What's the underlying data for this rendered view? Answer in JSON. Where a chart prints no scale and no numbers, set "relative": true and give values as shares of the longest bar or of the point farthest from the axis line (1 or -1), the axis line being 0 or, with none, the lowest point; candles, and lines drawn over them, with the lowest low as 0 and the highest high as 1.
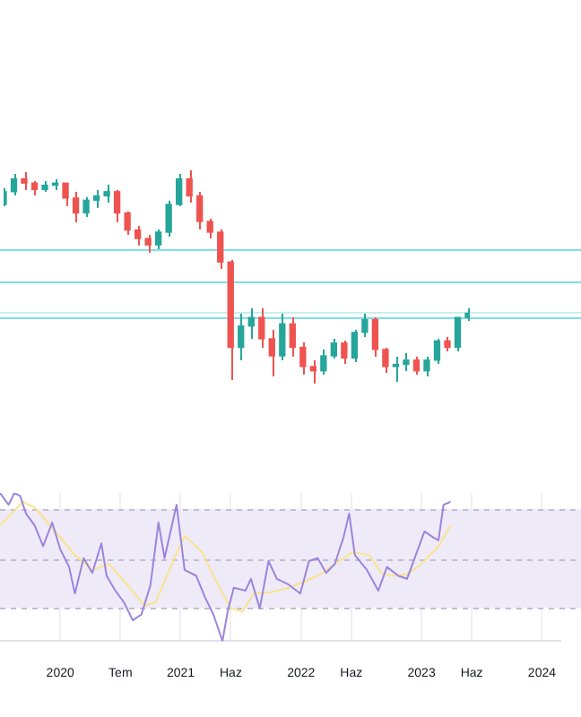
{
  "chart_data": [
    {
      "type": "candlestick",
      "relative": true,
      "categories": [
        null,
        null,
        null,
        null,
        null,
        null,
        null,
        null,
        null,
        null,
        null,
        null,
        null,
        null,
        null,
        null,
        null,
        null,
        null,
        null,
        null,
        null,
        null,
        null,
        null,
        null,
        null,
        null,
        null,
        null,
        null,
        null,
        null,
        null,
        null,
        null,
        null,
        null,
        null,
        null,
        null,
        null,
        null,
        null,
        null,
        null
      ],
      "ohlc": [
        [
          0.84,
          0.92,
          0.83,
          0.9
        ],
        [
          0.9,
          0.98,
          0.88,
          0.96
        ],
        [
          0.96,
          0.99,
          0.91,
          0.94
        ],
        [
          0.94,
          0.95,
          0.88,
          0.91
        ],
        [
          0.91,
          0.95,
          0.9,
          0.93
        ],
        [
          0.93,
          0.96,
          0.91,
          0.94
        ],
        [
          0.94,
          0.94,
          0.83,
          0.87
        ],
        [
          0.87,
          0.9,
          0.76,
          0.8
        ],
        [
          0.8,
          0.87,
          0.78,
          0.86
        ],
        [
          0.86,
          0.91,
          0.82,
          0.88
        ],
        [
          0.88,
          0.93,
          0.85,
          0.9
        ],
        [
          0.9,
          0.91,
          0.76,
          0.8
        ],
        [
          0.8,
          0.81,
          0.7,
          0.72
        ],
        [
          0.72,
          0.74,
          0.65,
          0.68
        ],
        [
          0.68,
          0.7,
          0.61,
          0.65
        ],
        [
          0.65,
          0.72,
          0.63,
          0.71
        ],
        [
          0.71,
          0.86,
          0.69,
          0.84
        ],
        [
          0.84,
          0.98,
          0.83,
          0.96
        ],
        [
          0.96,
          1.0,
          0.85,
          0.88
        ],
        [
          0.88,
          0.9,
          0.72,
          0.76
        ],
        [
          0.76,
          0.77,
          0.68,
          0.71
        ],
        [
          0.71,
          0.72,
          0.54,
          0.57
        ],
        [
          0.57,
          0.58,
          0.02,
          0.17
        ],
        [
          0.17,
          0.33,
          0.11,
          0.27
        ],
        [
          0.27,
          0.35,
          0.21,
          0.31
        ],
        [
          0.31,
          0.35,
          0.17,
          0.21
        ],
        [
          0.21,
          0.25,
          0.03,
          0.13
        ],
        [
          0.13,
          0.33,
          0.11,
          0.28
        ],
        [
          0.28,
          0.31,
          0.13,
          0.17
        ],
        [
          0.17,
          0.19,
          0.04,
          0.08
        ],
        [
          0.08,
          0.11,
          0,
          0.06
        ],
        [
          0.06,
          0.16,
          0.04,
          0.13
        ],
        [
          0.13,
          0.21,
          0.12,
          0.19
        ],
        [
          0.19,
          0.2,
          0.09,
          0.12
        ],
        [
          0.12,
          0.25,
          0.1,
          0.24
        ],
        [
          0.24,
          0.33,
          0.22,
          0.3
        ],
        [
          0.3,
          0.31,
          0.13,
          0.16
        ],
        [
          0.16,
          0.17,
          0.05,
          0.08
        ],
        [
          0.08,
          0.13,
          0.01,
          0.09
        ],
        [
          0.09,
          0.14,
          0.06,
          0.11
        ],
        [
          0.11,
          0.13,
          0.04,
          0.06
        ],
        [
          0.06,
          0.13,
          0.03,
          0.11
        ],
        [
          0.11,
          0.21,
          0.09,
          0.2
        ],
        [
          0.2,
          0.22,
          0.15,
          0.17
        ],
        [
          0.17,
          0.31,
          0.15,
          0.31
        ],
        [
          0.31,
          0.35,
          0.29,
          0.33
        ]
      ],
      "colors": [
        "#26a69a",
        "#26a69a",
        "#ef5350",
        "#ef5350",
        "#26a69a",
        "#26a69a",
        "#ef5350",
        "#ef5350",
        "#26a69a",
        "#26a69a",
        "#26a69a",
        "#ef5350",
        "#ef5350",
        "#ef5350",
        "#ef5350",
        "#26a69a",
        "#26a69a",
        "#26a69a",
        "#ef5350",
        "#ef5350",
        "#ef5350",
        "#ef5350",
        "#ef5350",
        "#26a69a",
        "#26a69a",
        "#ef5350",
        "#ef5350",
        "#26a69a",
        "#ef5350",
        "#ef5350",
        "#ef5350",
        "#26a69a",
        "#26a69a",
        "#ef5350",
        "#26a69a",
        "#26a69a",
        "#ef5350",
        "#ef5350",
        "#26a69a",
        "#26a69a",
        "#ef5350",
        "#26a69a",
        "#26a69a",
        "#ef5350",
        "#26a69a",
        "#26a69a"
      ],
      "ref_lines": [
        {
          "axis": "y",
          "value": 0.63,
          "color": "#80deea"
        },
        {
          "axis": "y",
          "value": 0.48,
          "color": "#80deea"
        },
        {
          "axis": "y",
          "value": 0.34,
          "color": "#c9eff4"
        },
        {
          "axis": "y",
          "value": 0.31,
          "color": "#80deea"
        }
      ]
    },
    {
      "type": "line",
      "relative": true,
      "grid": "x",
      "marker": "none",
      "series": [
        {
          "color": "#9c84dc",
          "x": [
            "2019-07-01",
            "2019-07-27",
            "2019-08-14",
            "2019-09-01",
            "2019-09-19",
            "2019-10-15",
            "2019-11-10",
            "2019-12-07",
            "2020-01-01",
            "2020-01-28",
            "2020-02-15",
            "2020-03-11",
            "2020-04-07",
            "2020-05-04",
            "2020-05-20",
            "2020-06-16",
            "2020-07-12",
            "2020-08-08",
            "2020-09-04",
            "2020-10-01",
            "2020-10-25",
            "2020-11-13",
            "2020-12-19",
            "2021-01-13",
            "2021-02-18",
            "2021-03-13",
            "2021-04-09",
            "2021-05-06",
            "2021-05-22",
            "2021-06-10",
            "2021-07-15",
            "2021-08-01",
            "2021-08-28",
            "2021-09-24",
            "2021-10-19",
            "2021-11-25",
            "2021-12-29",
            "2022-01-25",
            "2022-02-21",
            "2022-03-16",
            "2022-04-12",
            "2022-05-08",
            "2022-05-25",
            "2022-06-12",
            "2022-07-18",
            "2022-08-22",
            "2022-09-18",
            "2022-10-22",
            "2022-11-18",
            "2022-12-14",
            "2023-01-10",
            "2023-02-06",
            "2023-02-22",
            "2023-03-07",
            "2023-03-28"
          ],
          "values": [
            1.0,
            0.92,
            1.0,
            0.98,
            0.86,
            0.78,
            0.64,
            0.8,
            0.62,
            0.5,
            0.32,
            0.56,
            0.46,
            0.66,
            0.44,
            0.34,
            0.26,
            0.14,
            0.18,
            0.38,
            0.8,
            0.56,
            0.92,
            0.48,
            0.44,
            0.3,
            0.18,
            0,
            0.2,
            0.36,
            0.34,
            0.42,
            0.22,
            0.54,
            0.42,
            0.38,
            0.32,
            0.54,
            0.56,
            0.46,
            0.52,
            0.7,
            0.86,
            0.58,
            0.48,
            0.34,
            0.5,
            0.44,
            0.42,
            0.58,
            0.74,
            0.7,
            0.68,
            0.92,
            0.94
          ]
        },
        {
          "color": "#f7e48c",
          "x": [
            "2019-07-01",
            "2019-09-10",
            "2019-10-15",
            "2019-12-24",
            "2020-02-15",
            "2020-04-07",
            "2020-05-28",
            "2020-07-21",
            "2020-09-13",
            "2020-10-16",
            "2020-12-09",
            "2021-01-13",
            "2021-03-05",
            "2021-04-18",
            "2021-06-01",
            "2021-07-06",
            "2021-08-10",
            "2021-10-03",
            "2021-11-25",
            "2021-12-29",
            "2022-02-21",
            "2022-04-12",
            "2022-06-04",
            "2022-07-25",
            "2022-09-01",
            "2022-10-05",
            "2022-11-18",
            "2023-01-01",
            "2023-02-22",
            "2023-03-28"
          ],
          "values": [
            0.78,
            0.94,
            0.9,
            0.72,
            0.58,
            0.48,
            0.52,
            0.38,
            0.24,
            0.26,
            0.54,
            0.71,
            0.6,
            0.4,
            0.22,
            0.2,
            0.32,
            0.33,
            0.36,
            0.39,
            0.44,
            0.52,
            0.6,
            0.58,
            0.46,
            0.44,
            0.45,
            0.52,
            0.64,
            0.78
          ]
        }
      ],
      "xlim": [
        "2019-07-01",
        "2024-02-27"
      ],
      "xticks": [
        {
          "value": "2020-01",
          "label": "2020"
        },
        {
          "value": "2020-07",
          "label": "Tem"
        },
        {
          "value": "2021-01",
          "label": "2021"
        },
        {
          "value": "2021-06",
          "label": "Haz"
        },
        {
          "value": "2022-01",
          "label": "2022"
        },
        {
          "value": "2022-06",
          "label": "Haz"
        },
        {
          "value": "2023-01",
          "label": "2023"
        },
        {
          "value": "2023-06",
          "label": "Haz"
        },
        {
          "value": "2024-01",
          "label": "2024"
        }
      ],
      "bands": [
        {
          "axis": "y",
          "from": 0.22,
          "to": 0.89,
          "color": "#efeaf8"
        }
      ],
      "ref_lines": [
        {
          "axis": "y",
          "value": 0.89,
          "color": "#c4bcd4",
          "line_style": "dashed"
        },
        {
          "axis": "y",
          "value": 0.55,
          "color": "#c4bcd4",
          "line_style": "dashed"
        },
        {
          "axis": "y",
          "value": 0.22,
          "color": "#c4bcd4",
          "line_style": "dashed"
        }
      ]
    }
  ]
}
